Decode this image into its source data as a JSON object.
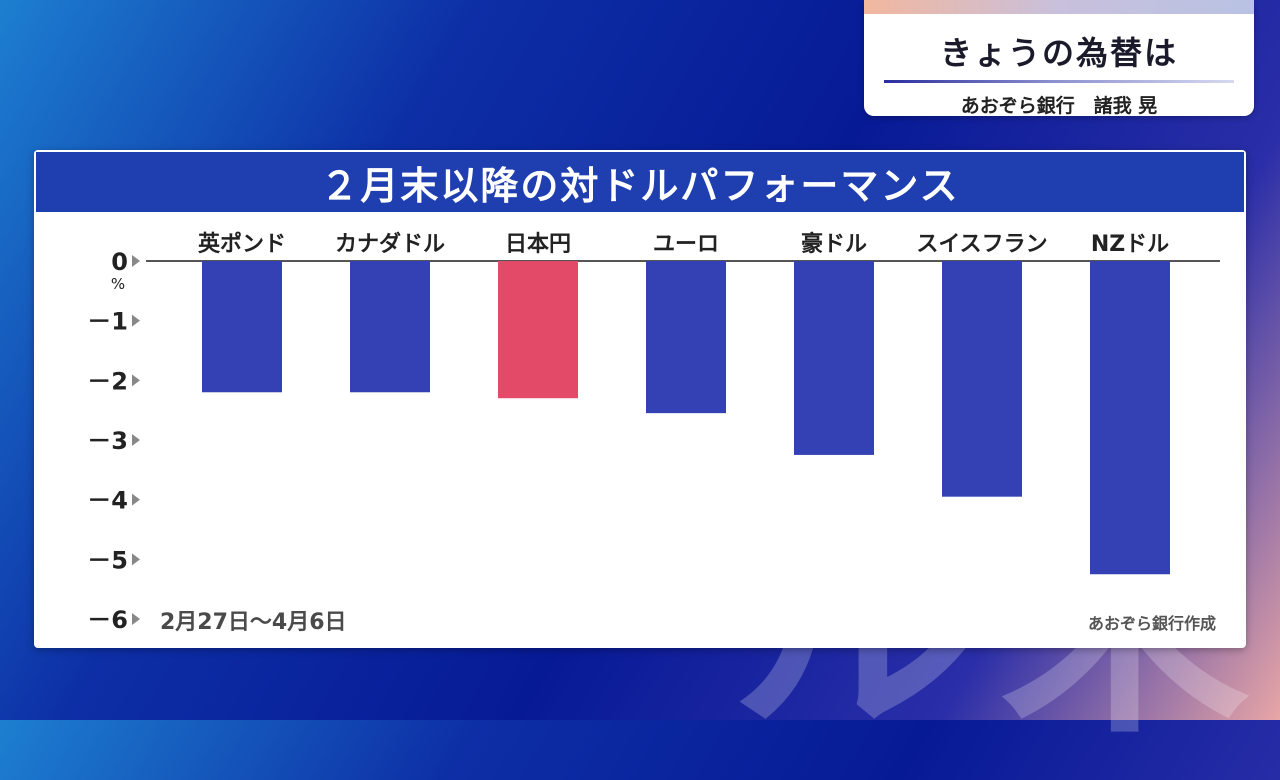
{
  "header": {
    "title": "きょうの為替は",
    "presenter": "あおぞら銀行　諸我 晃"
  },
  "background_text": "ル末",
  "chart_data": {
    "type": "bar",
    "title": "２月末以降の対ドルパフォーマンス",
    "categories": [
      "英ポンド",
      "カナダドル",
      "日本円",
      "ユーロ",
      "豪ドル",
      "スイスフラン",
      "NZドル"
    ],
    "values": [
      -2.2,
      -2.2,
      -2.3,
      -2.55,
      -3.25,
      -3.95,
      -5.25
    ],
    "highlight_category": "日本円",
    "ylim": [
      -6,
      0
    ],
    "yticks": [
      0,
      -1,
      -2,
      -3,
      -4,
      -5,
      -6
    ],
    "ytick_labels": [
      "0",
      "－1",
      "－2",
      "－3",
      "－4",
      "－5",
      "－6"
    ],
    "yunit": "%",
    "colors": {
      "bar": "#3341b4",
      "highlight": "#e34a68"
    },
    "period_note": "2月27日～4月6日",
    "source_note": "あおぞら銀行作成"
  }
}
